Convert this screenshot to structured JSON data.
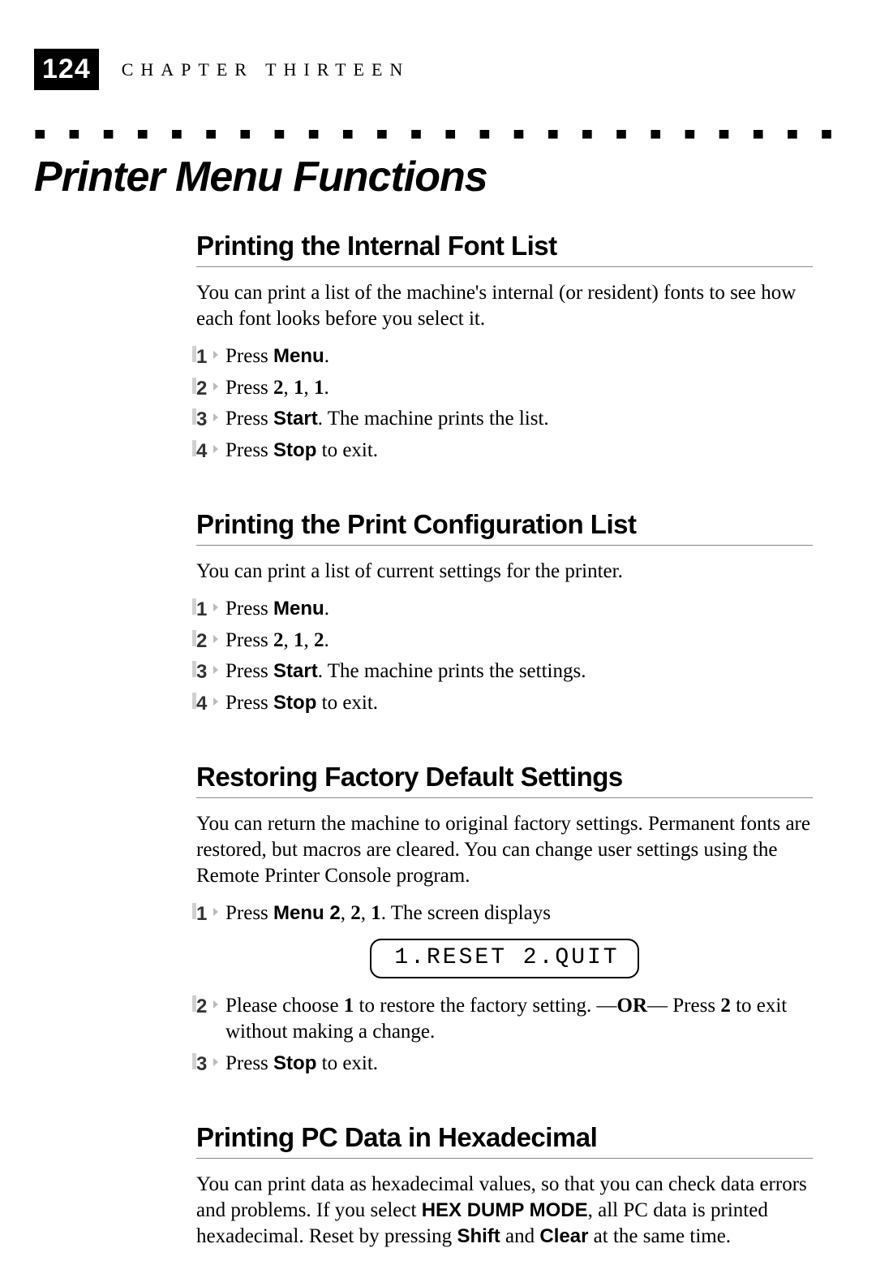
{
  "header": {
    "page_number": "124",
    "chapter_label": "CHAPTER THIRTEEN"
  },
  "dotted_rule": "■ ■ ■ ■ ■ ■ ■ ■ ■ ■ ■ ■ ■ ■ ■ ■ ■ ■ ■ ■ ■ ■ ■ ■ ■ ■ ■ ■ ■ ■ ■ ■ ■ ■ ■ ■ ■ ■ ■ ■ ■ ■ ■ ■ ■ ■ ■ ■ ■",
  "main_title": "Printer Menu Functions",
  "sections": {
    "font_list": {
      "title": "Printing the Internal Font List",
      "intro": "You can print a list of the machine's internal (or resident) fonts to see how each font looks before you select it.",
      "steps": {
        "s1_pre": "Press ",
        "s1_b": "Menu",
        "s1_post": ".",
        "s2_pre": "Press ",
        "s2_b1": "2",
        "s2_c1": ", ",
        "s2_b2": "1",
        "s2_c2": ", ",
        "s2_b3": "1",
        "s2_post": ".",
        "s3_pre": "Press ",
        "s3_b": "Start",
        "s3_post": ". The machine prints the list.",
        "s4_pre": "Press ",
        "s4_b": "Stop",
        "s4_post": " to exit."
      }
    },
    "config_list": {
      "title": "Printing the Print Configuration List",
      "intro": "You can print a list of current settings for the printer.",
      "steps": {
        "s1_pre": "Press ",
        "s1_b": "Menu",
        "s1_post": ".",
        "s2_pre": "Press ",
        "s2_b1": "2",
        "s2_c1": ", ",
        "s2_b2": "1",
        "s2_c2": ", ",
        "s2_b3": "2",
        "s2_post": ".",
        "s3_pre": "Press ",
        "s3_b": "Start",
        "s3_post": ". The machine prints the settings.",
        "s4_pre": "Press ",
        "s4_b": "Stop",
        "s4_post": " to exit."
      }
    },
    "factory_reset": {
      "title": "Restoring Factory Default Settings",
      "intro": "You can return the machine to original factory settings. Permanent fonts are restored, but macros are cleared. You can change user settings using the Remote Printer Console program.",
      "steps": {
        "s1_pre": "Press ",
        "s1_b1": "Menu 2",
        "s1_c1": ", ",
        "s1_b2": "2",
        "s1_c2": ", ",
        "s1_b3": "1",
        "s1_post": ". The screen displays",
        "lcd": "1.RESET 2.QUIT",
        "s2_pre": "Please choose ",
        "s2_b1": "1",
        "s2_mid1": " to restore the factory setting. —",
        "s2_b2": "OR",
        "s2_mid2": "— Press ",
        "s2_b3": "2",
        "s2_post": " to exit without making a change.",
        "s3_pre": "Press ",
        "s3_b": "Stop",
        "s3_post": " to exit."
      }
    },
    "hex_dump": {
      "title": "Printing PC Data in Hexadecimal",
      "p1_pre": "You can print data as hexadecimal values, so that you can check data errors and problems. If you select ",
      "p1_b1": "HEX DUMP MODE",
      "p1_mid": ", all PC data is printed hexadecimal. Reset by pressing ",
      "p1_b2": "Shift",
      "p1_and": " and ",
      "p1_b3": "Clear",
      "p1_post": " at the same time."
    }
  },
  "nums": {
    "n1": "1",
    "n2": "2",
    "n3": "3",
    "n4": "4"
  }
}
